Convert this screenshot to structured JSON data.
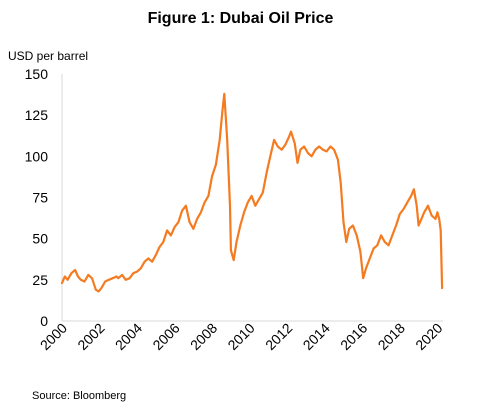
{
  "chart_data": {
    "type": "line",
    "title": "Figure 1: Dubai Oil Price",
    "ylabel": "USD per barrel",
    "xlabel": "",
    "source": "Source: Bloomberg",
    "ylim": [
      0,
      150
    ],
    "xlim": [
      2000,
      2020.3
    ],
    "y_ticks": [
      "0",
      "25",
      "50",
      "75",
      "100",
      "125",
      "150"
    ],
    "x_ticks": [
      "2000",
      "2002",
      "2004",
      "2006",
      "2008",
      "2010",
      "2012",
      "2014",
      "2016",
      "2018",
      "2020"
    ],
    "grid": false,
    "color": "#f47b20",
    "series": [
      {
        "x": [
          2000.0,
          2000.15,
          2000.3,
          2000.5,
          2000.7,
          2000.85,
          2001.0,
          2001.2,
          2001.4,
          2001.6,
          2001.8,
          2001.95,
          2002.1,
          2002.3,
          2002.5,
          2002.7,
          2002.9,
          2003.0,
          2003.2,
          2003.4,
          2003.6,
          2003.8,
          2004.0,
          2004.2,
          2004.4,
          2004.6,
          2004.8,
          2005.0,
          2005.2,
          2005.4,
          2005.6,
          2005.8,
          2006.0,
          2006.2,
          2006.4,
          2006.6,
          2006.8,
          2007.0,
          2007.2,
          2007.4,
          2007.6,
          2007.8,
          2008.0,
          2008.2,
          2008.4,
          2008.55,
          2008.65,
          2008.8,
          2008.95,
          2009.0,
          2009.15,
          2009.3,
          2009.5,
          2009.7,
          2009.9,
          2010.1,
          2010.3,
          2010.5,
          2010.7,
          2010.9,
          2011.1,
          2011.3,
          2011.5,
          2011.7,
          2011.9,
          2012.1,
          2012.2,
          2012.4,
          2012.55,
          2012.7,
          2012.9,
          2013.1,
          2013.3,
          2013.5,
          2013.7,
          2013.9,
          2014.1,
          2014.3,
          2014.5,
          2014.7,
          2014.85,
          2015.0,
          2015.15,
          2015.3,
          2015.5,
          2015.7,
          2015.9,
          2016.05,
          2016.2,
          2016.4,
          2016.6,
          2016.8,
          2017.0,
          2017.2,
          2017.4,
          2017.6,
          2017.8,
          2018.0,
          2018.2,
          2018.4,
          2018.6,
          2018.75,
          2018.9,
          2019.0,
          2019.15,
          2019.3,
          2019.5,
          2019.7,
          2019.9,
          2020.0,
          2020.1,
          2020.18,
          2020.25
        ],
        "y": [
          23,
          27,
          25,
          29,
          31,
          27,
          25,
          24,
          28,
          26,
          19,
          18,
          20,
          24,
          25,
          26,
          27,
          26,
          28,
          25,
          26,
          29,
          30,
          32,
          36,
          38,
          36,
          40,
          45,
          48,
          55,
          52,
          57,
          60,
          67,
          70,
          60,
          56,
          62,
          66,
          72,
          76,
          88,
          95,
          110,
          128,
          138,
          110,
          70,
          43,
          37,
          48,
          58,
          66,
          72,
          76,
          70,
          74,
          78,
          90,
          100,
          110,
          106,
          104,
          107,
          112,
          115,
          108,
          96,
          104,
          106,
          102,
          100,
          104,
          106,
          104,
          103,
          106,
          104,
          98,
          84,
          60,
          48,
          56,
          58,
          52,
          42,
          26,
          32,
          38,
          44,
          46,
          52,
          48,
          46,
          52,
          58,
          65,
          68,
          72,
          76,
          80,
          70,
          58,
          62,
          66,
          70,
          64,
          62,
          66,
          62,
          55,
          20
        ]
      }
    ]
  }
}
